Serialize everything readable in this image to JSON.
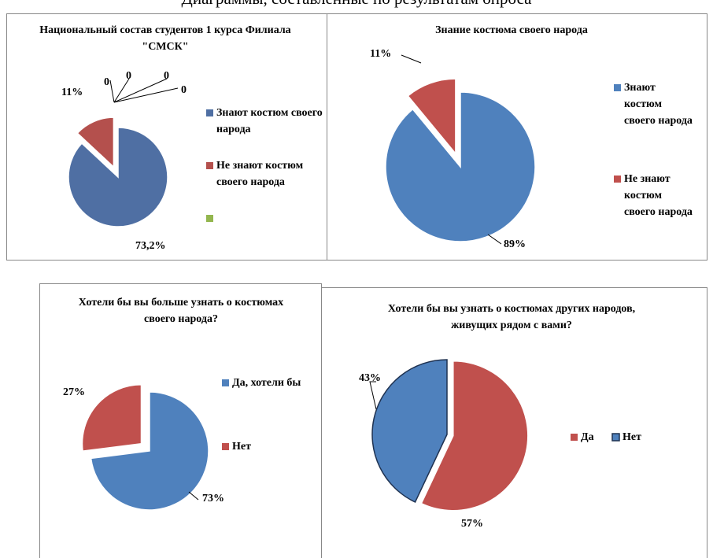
{
  "heading": "Диаграммы, составленные по результатам опроса",
  "chart_data": [
    {
      "type": "pie",
      "title": "Национальный состав студентов 1 курса Филиала \"СМСК\"",
      "categories": [
        "Знают костюм своего народа",
        "Не знают костюм своего народа",
        null,
        null,
        null,
        null
      ],
      "values": [
        73.2,
        11,
        0,
        0,
        0,
        0
      ],
      "value_labels": [
        "73,2%",
        "11%",
        "0",
        "0",
        "0",
        "0"
      ],
      "colors": [
        "#4f6fa3",
        "#b4504d",
        "#93b64e"
      ]
    },
    {
      "type": "pie",
      "title": "Знание костюма своего народа",
      "categories": [
        "Знают костюм своего народа",
        "Не знают костюм своего народа"
      ],
      "values": [
        89,
        11
      ],
      "value_labels": [
        "89%",
        "11%"
      ],
      "colors": [
        "#4f81bd",
        "#c0504d"
      ]
    },
    {
      "type": "pie",
      "title": "Хотели бы вы больше узнать о костюмах своего народа?",
      "categories": [
        "Да, хотели бы",
        "Нет"
      ],
      "values": [
        73,
        27
      ],
      "value_labels": [
        "73%",
        "27%"
      ],
      "colors": [
        "#4f81bd",
        "#c0504d"
      ]
    },
    {
      "type": "pie",
      "title": "Хотели бы вы узнать о костюмах других народов, живущих рядом с вами?",
      "categories": [
        "Да",
        "Нет"
      ],
      "values": [
        57,
        43
      ],
      "value_labels": [
        "57%",
        "43%"
      ],
      "colors": [
        "#c0504d",
        "#4f81bd"
      ]
    }
  ]
}
